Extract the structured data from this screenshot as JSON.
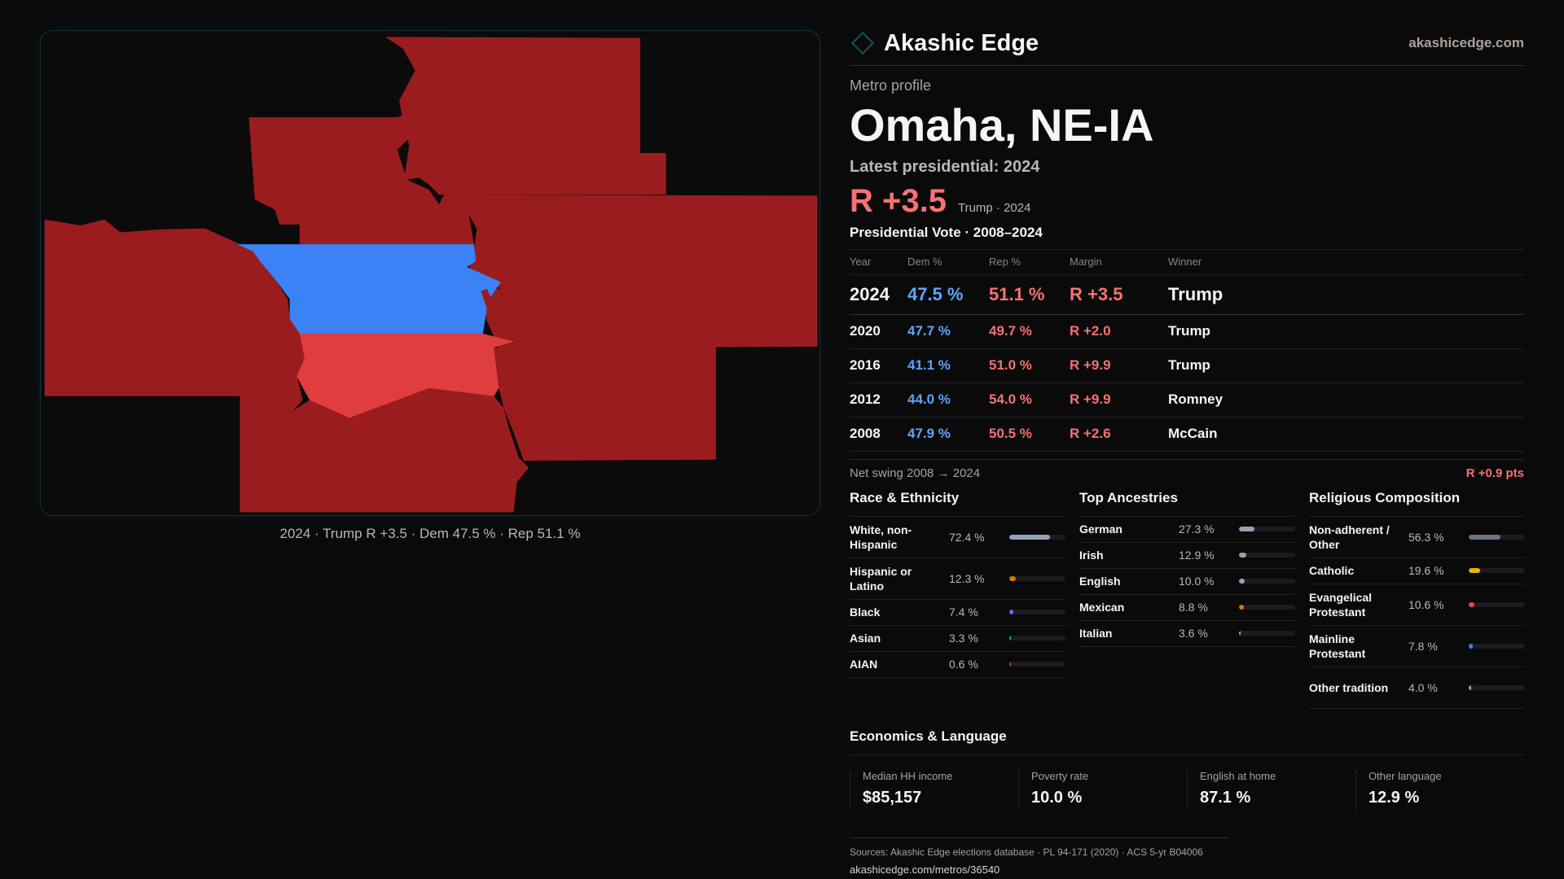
{
  "map": {
    "caption": "2024 · Trump R +3.5 · Dem 47.5 % · Rep 51.1 %",
    "colors": {
      "strong_rep": "#9b1c1f",
      "lean_rep": "#e03e3e",
      "dem": "#3b82f6"
    }
  },
  "header": {
    "brand": "Akashic Edge",
    "site": "akashicedge.com"
  },
  "profile": {
    "kicker": "Metro profile",
    "title": "Omaha, NE-IA",
    "latest": "Latest presidential: 2024",
    "margin": "R +3.5",
    "winner_note": "Trump · 2024"
  },
  "vote": {
    "title": "Presidential Vote · 2008–2024",
    "columns": [
      "Year",
      "Dem %",
      "Rep %",
      "Margin",
      "Winner"
    ],
    "rows": [
      {
        "year": "2024",
        "dem": "47.5 %",
        "rep": "51.1 %",
        "margin": "R +3.5",
        "winner": "Trump"
      },
      {
        "year": "2020",
        "dem": "47.7 %",
        "rep": "49.7 %",
        "margin": "R +2.0",
        "winner": "Trump"
      },
      {
        "year": "2016",
        "dem": "41.1 %",
        "rep": "51.0 %",
        "margin": "R +9.9",
        "winner": "Trump"
      },
      {
        "year": "2012",
        "dem": "44.0 %",
        "rep": "54.0 %",
        "margin": "R +9.9",
        "winner": "Romney"
      },
      {
        "year": "2008",
        "dem": "47.9 %",
        "rep": "50.5 %",
        "margin": "R +2.6",
        "winner": "McCain"
      }
    ],
    "swing_label": "Net swing 2008 → 2024",
    "swing_value": "R +0.9 pts"
  },
  "race": {
    "title": "Race & Ethnicity",
    "items": [
      {
        "label": "White, non-Hispanic",
        "value": "72.4 %",
        "pct": 72.4,
        "color": "#94a3b8"
      },
      {
        "label": "Hispanic or Latino",
        "value": "12.3 %",
        "pct": 12.3,
        "color": "#d97706"
      },
      {
        "label": "Black",
        "value": "7.4 %",
        "pct": 7.4,
        "color": "#8b5cf6"
      },
      {
        "label": "Asian",
        "value": "3.3 %",
        "pct": 3.3,
        "color": "#10b981"
      },
      {
        "label": "AIAN",
        "value": "0.6 %",
        "pct": 0.6,
        "color": "#b45309"
      }
    ]
  },
  "ancestry": {
    "title": "Top Ancestries",
    "items": [
      {
        "label": "German",
        "value": "27.3 %",
        "pct": 27.3,
        "color": "#94a3b8"
      },
      {
        "label": "Irish",
        "value": "12.9 %",
        "pct": 12.9,
        "color": "#94a3b8"
      },
      {
        "label": "English",
        "value": "10.0 %",
        "pct": 10.0,
        "color": "#94a3b8"
      },
      {
        "label": "Mexican",
        "value": "8.8 %",
        "pct": 8.8,
        "color": "#d97706"
      },
      {
        "label": "Italian",
        "value": "3.6 %",
        "pct": 3.6,
        "color": "#94a3b8"
      }
    ]
  },
  "religion": {
    "title": "Religious Composition",
    "items": [
      {
        "label": "Non-adherent / Other",
        "value": "56.3 %",
        "pct": 56.3,
        "color": "#6b7280"
      },
      {
        "label": "Catholic",
        "value": "19.6 %",
        "pct": 19.6,
        "color": "#eab308"
      },
      {
        "label": "Evangelical Protestant",
        "value": "10.6 %",
        "pct": 10.6,
        "color": "#ef4444"
      },
      {
        "label": "Mainline Protestant",
        "value": "7.8 %",
        "pct": 7.8,
        "color": "#3b82f6"
      },
      {
        "label": "Other tradition",
        "value": "4.0 %",
        "pct": 4.0,
        "color": "#9ca3af"
      }
    ]
  },
  "econ": {
    "title": "Economics & Language",
    "cards": [
      {
        "label": "Median HH income",
        "value": "$85,157"
      },
      {
        "label": "Poverty rate",
        "value": "10.0 %"
      },
      {
        "label": "English at home",
        "value": "87.1 %"
      },
      {
        "label": "Other language",
        "value": "12.9 %"
      }
    ]
  },
  "footer": {
    "sources": "Sources: Akashic Edge elections database · PL 94-171 (2020) · ACS 5-yr B04006",
    "url": "akashicedge.com/metros/36540"
  }
}
